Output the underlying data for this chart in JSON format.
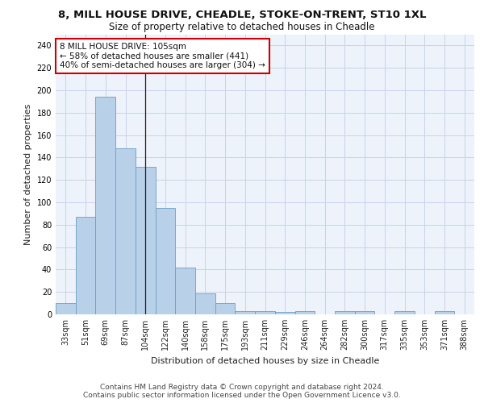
{
  "title_line1": "8, MILL HOUSE DRIVE, CHEADLE, STOKE-ON-TRENT, ST10 1XL",
  "title_line2": "Size of property relative to detached houses in Cheadle",
  "xlabel": "Distribution of detached houses by size in Cheadle",
  "ylabel": "Number of detached properties",
  "categories": [
    "33sqm",
    "51sqm",
    "69sqm",
    "87sqm",
    "104sqm",
    "122sqm",
    "140sqm",
    "158sqm",
    "175sqm",
    "193sqm",
    "211sqm",
    "229sqm",
    "246sqm",
    "264sqm",
    "282sqm",
    "300sqm",
    "317sqm",
    "335sqm",
    "353sqm",
    "371sqm",
    "388sqm"
  ],
  "values": [
    10,
    87,
    194,
    148,
    132,
    95,
    42,
    19,
    10,
    3,
    3,
    2,
    3,
    0,
    3,
    3,
    0,
    3,
    0,
    3,
    0
  ],
  "bar_color": "#b8d0e8",
  "bar_edge_color": "#6a9fc8",
  "highlight_bar_index": 4,
  "highlight_line_color": "#222222",
  "annotation_text": "8 MILL HOUSE DRIVE: 105sqm\n← 58% of detached houses are smaller (441)\n40% of semi-detached houses are larger (304) →",
  "annotation_box_color": "#ffffff",
  "annotation_box_edgecolor": "#cc0000",
  "ylim": [
    0,
    250
  ],
  "yticks": [
    0,
    20,
    40,
    60,
    80,
    100,
    120,
    140,
    160,
    180,
    200,
    220,
    240
  ],
  "grid_color": "#c8d4e8",
  "background_color": "#eef2fa",
  "footer_line1": "Contains HM Land Registry data © Crown copyright and database right 2024.",
  "footer_line2": "Contains public sector information licensed under the Open Government Licence v3.0.",
  "title_fontsize": 9.5,
  "subtitle_fontsize": 8.5,
  "axis_label_fontsize": 8,
  "tick_fontsize": 7,
  "annotation_fontsize": 7.5,
  "footer_fontsize": 6.5
}
